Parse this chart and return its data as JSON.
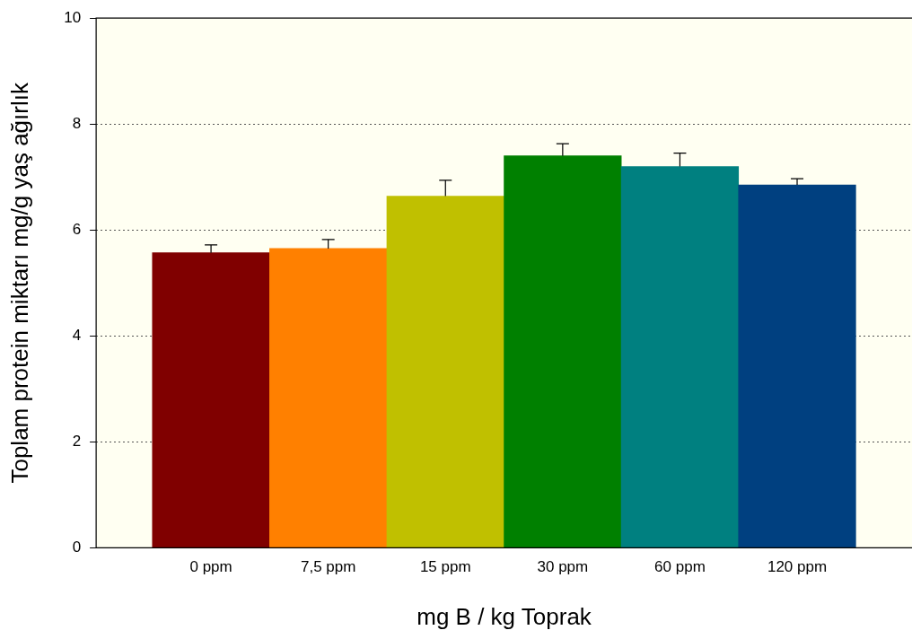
{
  "chart_data": {
    "type": "bar",
    "xlabel": "mg B / kg Toprak",
    "ylabel": "Toplam protein miktarı mg/g yaş ağırlık",
    "categories": [
      "0 ppm",
      "7,5 ppm",
      "15 ppm",
      "30 ppm",
      "60 ppm",
      "120 ppm"
    ],
    "values": [
      5.57,
      5.65,
      6.64,
      7.4,
      7.2,
      6.85
    ],
    "colors": [
      "#800000",
      "#ff8000",
      "#c0c000",
      "#008000",
      "#008080",
      "#004080"
    ],
    "errors": [
      [
        5.57,
        5.72
      ],
      [
        5.65,
        5.82
      ],
      [
        6.64,
        6.94
      ],
      [
        7.4,
        7.63
      ],
      [
        7.2,
        7.45
      ],
      [
        6.85,
        6.97
      ]
    ],
    "ylim": [
      0,
      10
    ],
    "yticks": [
      0,
      2,
      4,
      6,
      8,
      10
    ],
    "grid": "y",
    "legend": false
  }
}
